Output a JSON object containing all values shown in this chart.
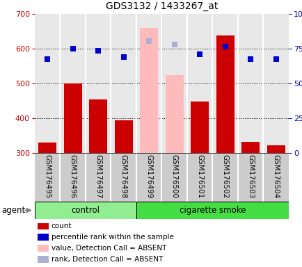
{
  "title": "GDS3132 / 1433267_at",
  "samples": [
    "GSM176495",
    "GSM176496",
    "GSM176497",
    "GSM176498",
    "GSM176499",
    "GSM176500",
    "GSM176501",
    "GSM176502",
    "GSM176503",
    "GSM176504"
  ],
  "bar_values": [
    330,
    500,
    455,
    395,
    660,
    525,
    448,
    638,
    333,
    323
  ],
  "bar_colors": [
    "#cc0000",
    "#cc0000",
    "#cc0000",
    "#cc0000",
    "#ffbbbb",
    "#ffbbbb",
    "#cc0000",
    "#cc0000",
    "#cc0000",
    "#cc0000"
  ],
  "dot_values": [
    570,
    600,
    595,
    577,
    622,
    612,
    585,
    607,
    570,
    570
  ],
  "dot_colors": [
    "#0000cc",
    "#0000cc",
    "#0000cc",
    "#0000cc",
    "#aab0d4",
    "#aab0d4",
    "#0000cc",
    "#0000cc",
    "#0000cc",
    "#0000cc"
  ],
  "ylim_min": 300,
  "ylim_max": 700,
  "yticks_left": [
    300,
    400,
    500,
    600,
    700
  ],
  "yticks_right": [
    0,
    25,
    50,
    75,
    100
  ],
  "ytick_right_labels": [
    "0",
    "25",
    "50",
    "75",
    "100%"
  ],
  "grid_vals": [
    400,
    500,
    600
  ],
  "n_control": 4,
  "control_label": "control",
  "smoke_label": "cigarette smoke",
  "agent_label": "agent",
  "control_color": "#90ee90",
  "smoke_color": "#44dd44",
  "left_tick_color": "#cc0000",
  "right_tick_color": "#0000bb",
  "tick_box_color": "#cccccc",
  "legend_items": [
    {
      "color": "#cc0000",
      "label": "count"
    },
    {
      "color": "#0000cc",
      "label": "percentile rank within the sample"
    },
    {
      "color": "#ffbbbb",
      "label": "value, Detection Call = ABSENT"
    },
    {
      "color": "#aab0d4",
      "label": "rank, Detection Call = ABSENT"
    }
  ],
  "bar_width": 0.7
}
